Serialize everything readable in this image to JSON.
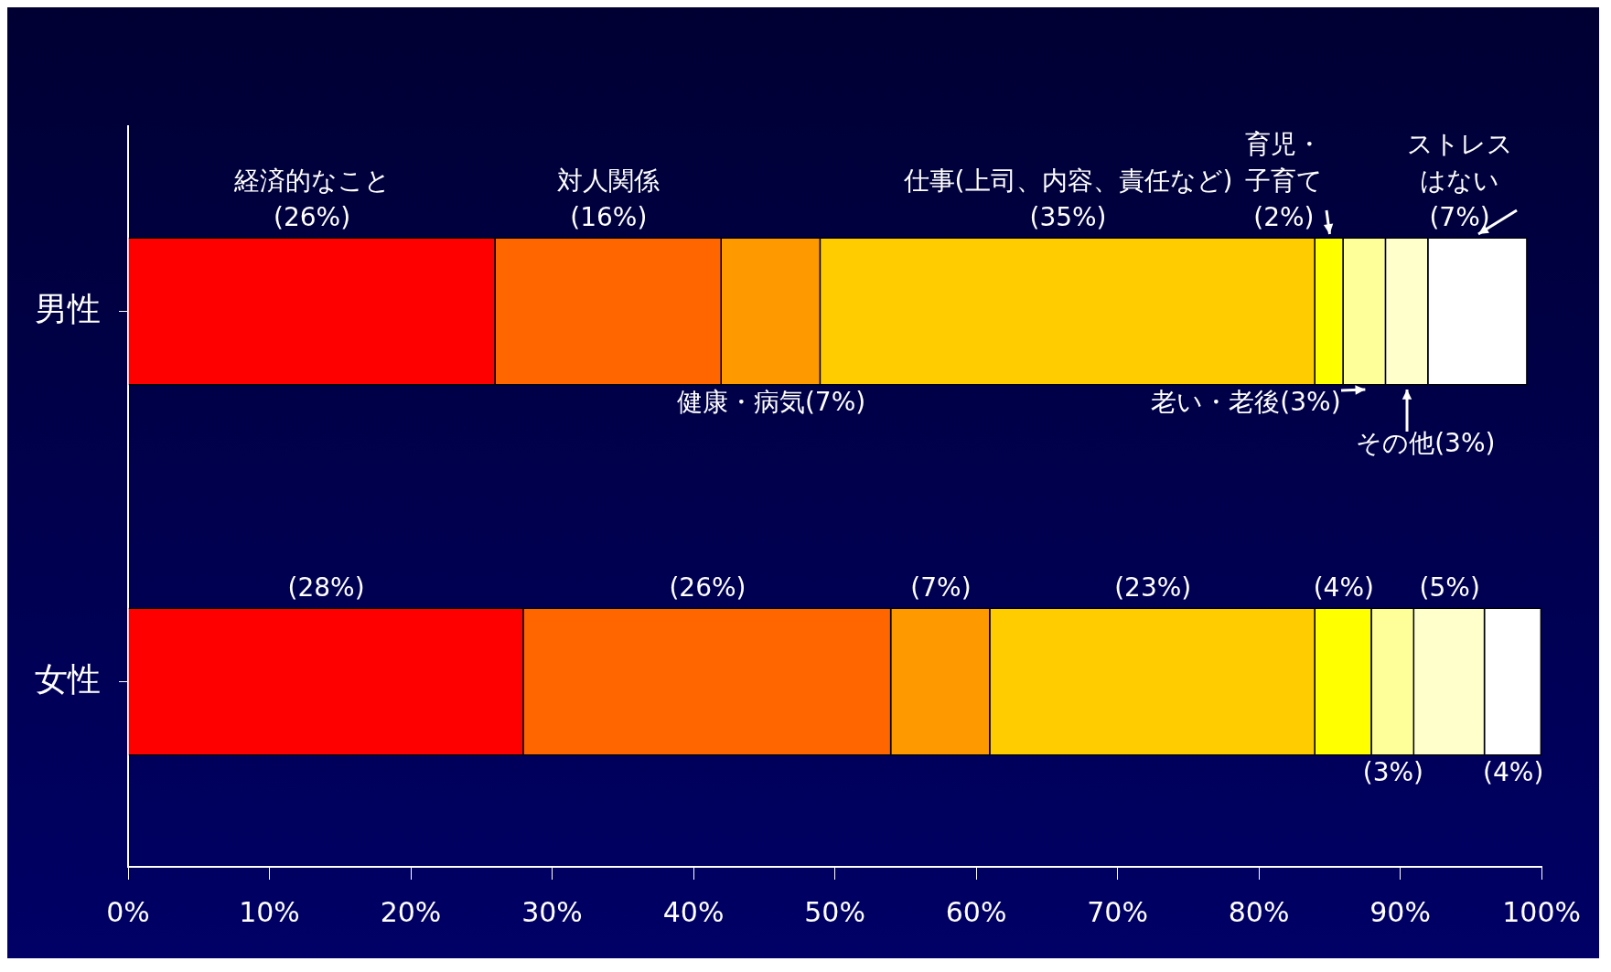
{
  "chart_data": {
    "type": "bar",
    "orientation": "horizontal",
    "stacked": true,
    "categories": [
      "男性",
      "女性"
    ],
    "xlim": [
      0,
      100
    ],
    "xticks": [
      {
        "value": 0,
        "label": "0%"
      },
      {
        "value": 10,
        "label": "10%"
      },
      {
        "value": 20,
        "label": "20%"
      },
      {
        "value": 30,
        "label": "30%"
      },
      {
        "value": 40,
        "label": "40%"
      },
      {
        "value": 50,
        "label": "50%"
      },
      {
        "value": 60,
        "label": "60%"
      },
      {
        "value": 70,
        "label": "70%"
      },
      {
        "value": 80,
        "label": "80%"
      },
      {
        "value": 90,
        "label": "90%"
      },
      {
        "value": 100,
        "label": "100%"
      }
    ],
    "grid": false,
    "legend": false,
    "series": [
      {
        "name": "経済的なこと",
        "color": "#ff0000",
        "values": [
          26,
          28
        ],
        "value_labels": [
          "(26%)",
          "(28%)"
        ]
      },
      {
        "name": "対人関係",
        "color": "#ff6600",
        "values": [
          16,
          26
        ],
        "value_labels": [
          "(16%)",
          "(26%)"
        ]
      },
      {
        "name": "健康・病気",
        "color": "#ff9900",
        "values": [
          7,
          7
        ],
        "value_labels": [
          "(7%)",
          "(7%)"
        ]
      },
      {
        "name": "仕事(上司、内容、責任など)",
        "color": "#ffcc00",
        "values": [
          35,
          23
        ],
        "value_labels": [
          "(35%)",
          "(23%)"
        ]
      },
      {
        "name": "育児・子育て",
        "color": "#ffff00",
        "values": [
          2,
          4
        ],
        "value_labels": [
          "(2%)",
          "(4%)"
        ]
      },
      {
        "name": "老い・老後",
        "color": "#ffff99",
        "values": [
          3,
          3
        ],
        "value_labels": [
          "(3%)",
          "(3%)"
        ]
      },
      {
        "name": "その他",
        "color": "#ffffcc",
        "values": [
          3,
          5
        ],
        "value_labels": [
          "(3%)",
          "(5%)"
        ]
      },
      {
        "name": "ストレスはない",
        "color": "#ffffff",
        "values": [
          7,
          4
        ],
        "value_labels": [
          "(7%)",
          "(4%)"
        ]
      }
    ]
  }
}
